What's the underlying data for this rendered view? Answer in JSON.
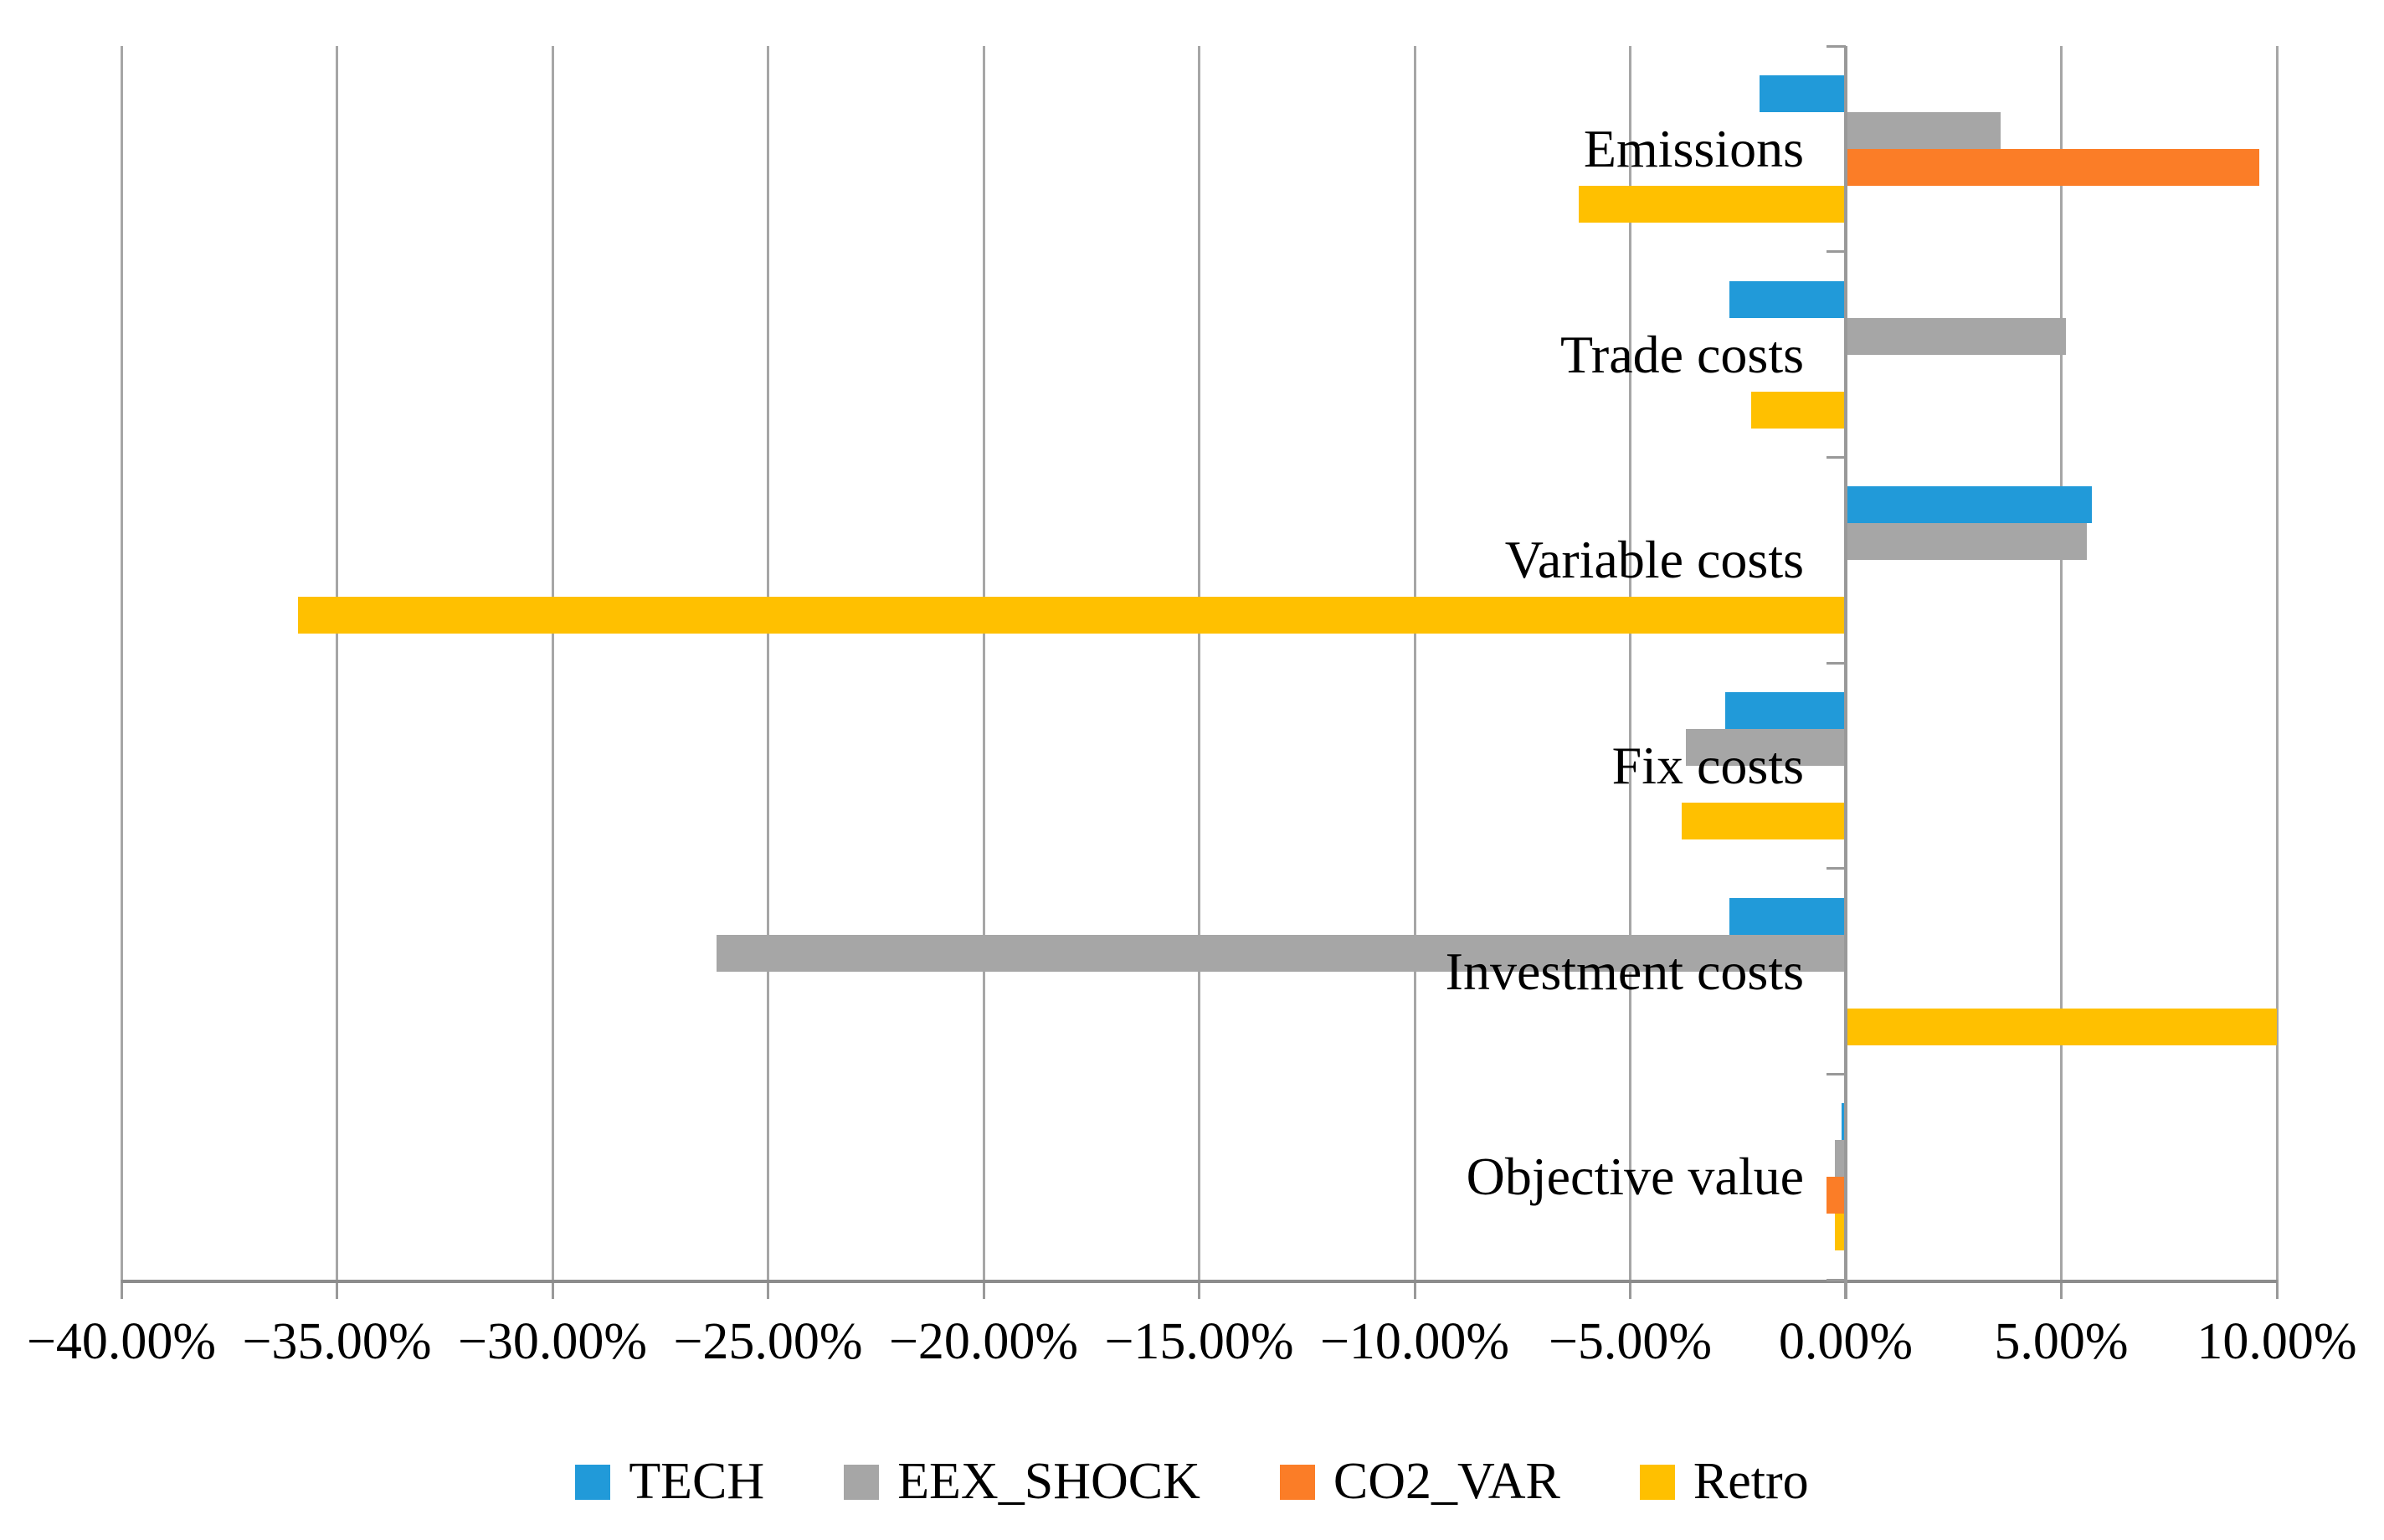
{
  "chart_data": {
    "type": "bar",
    "orientation": "horizontal",
    "title": "",
    "xlabel": "",
    "ylabel": "",
    "unit": "percent",
    "categories": [
      "Emissions",
      "Trade costs",
      "Variable costs",
      "Fix costs",
      "Investment costs",
      "Objective value"
    ],
    "series": [
      {
        "name": "TECH",
        "color": "#219ad9",
        "values": [
          -2.0,
          -2.7,
          5.7,
          -2.8,
          -2.7,
          -0.1
        ]
      },
      {
        "name": "EEX_SHOCK",
        "color": "#a6a6a6",
        "values": [
          3.6,
          5.1,
          5.6,
          -3.7,
          -26.2,
          -0.25
        ]
      },
      {
        "name": "CO2_VAR",
        "color": "#fb7d27",
        "values": [
          9.6,
          0.0,
          0.0,
          0.0,
          0.0,
          -0.45
        ]
      },
      {
        "name": "Retro",
        "color": "#ffc000",
        "values": [
          -6.2,
          -2.2,
          -35.9,
          -3.8,
          10.0,
          -0.25
        ]
      }
    ],
    "x_axis": {
      "min": -40,
      "max": 10,
      "step": 5,
      "tick_labels": [
        "−40.00%",
        "−35.00%",
        "−30.00%",
        "−25.00%",
        "−20.00%",
        "−15.00%",
        "−10.00%",
        "−5.00%",
        "0.00%",
        "5.00%",
        "10.00%"
      ]
    },
    "grid": true,
    "legend_position": "bottom",
    "colors": {
      "grid": "#a6a6a6",
      "axis": "#999999",
      "text": "#000000",
      "background": "#ffffff"
    }
  }
}
